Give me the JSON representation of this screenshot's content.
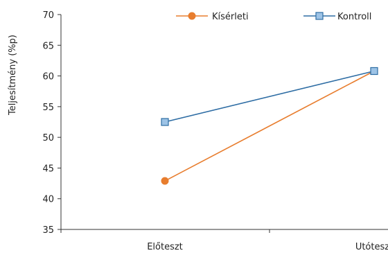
{
  "chart_data": {
    "type": "line",
    "title": "",
    "xlabel": "",
    "ylabel": "Teljesítmény (%p)",
    "categories": [
      "Előteszt",
      "Utóteszt"
    ],
    "ylim": [
      35,
      70
    ],
    "yticks": [
      35,
      40,
      45,
      50,
      55,
      60,
      65,
      70
    ],
    "grid": false,
    "legend_position": "top-right",
    "series": [
      {
        "name": "Kísérleti",
        "values": [
          42.9,
          60.8
        ],
        "color": "#E87D2E",
        "marker": "circle"
      },
      {
        "name": "Kontroll",
        "values": [
          52.5,
          60.8
        ],
        "color": "#2E6DA4",
        "marker_fill": "#9DC3E6",
        "marker": "square"
      }
    ]
  }
}
